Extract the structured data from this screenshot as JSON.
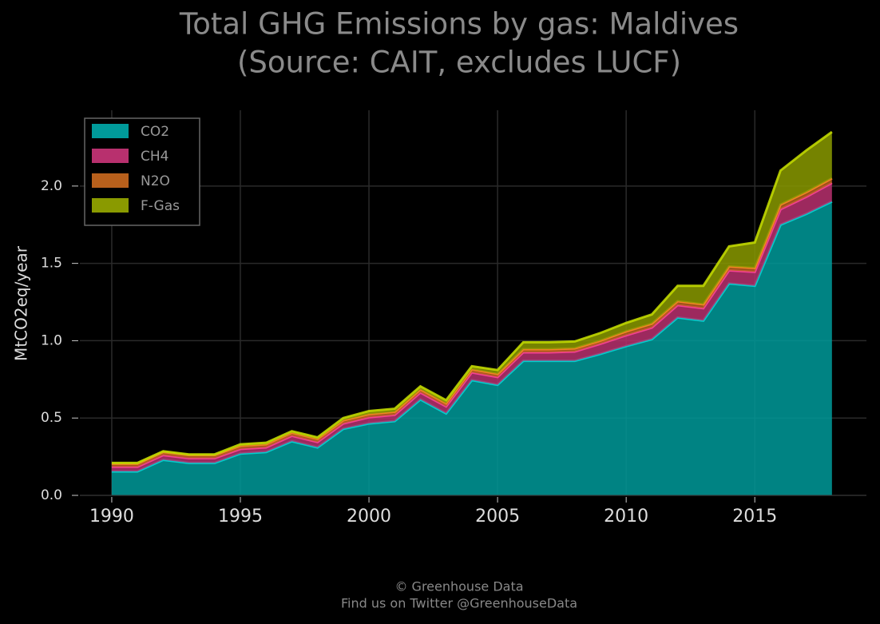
{
  "chart_data": {
    "type": "stacked_area",
    "title": [
      "Total GHG Emissions by gas: Maldives",
      "(Source: CAIT, excludes LUCF)"
    ],
    "ylabel": "MtCO2eq/year",
    "footer": [
      "© Greenhouse Data",
      "Find us on Twitter @GreenhouseData"
    ],
    "x": [
      1990,
      1991,
      1992,
      1993,
      1994,
      1995,
      1996,
      1997,
      1998,
      1999,
      2000,
      2001,
      2002,
      2003,
      2004,
      2005,
      2006,
      2007,
      2008,
      2009,
      2010,
      2011,
      2012,
      2013,
      2014,
      2015,
      2016,
      2017,
      2018
    ],
    "series": [
      {
        "name": "CO2",
        "color": "#009a9a",
        "values": [
          0.155,
          0.155,
          0.23,
          0.21,
          0.21,
          0.27,
          0.28,
          0.35,
          0.31,
          0.43,
          0.465,
          0.48,
          0.62,
          0.53,
          0.745,
          0.715,
          0.87,
          0.87,
          0.87,
          0.915,
          0.965,
          1.01,
          1.15,
          1.13,
          1.37,
          1.355,
          1.75,
          1.82,
          1.9
        ]
      },
      {
        "name": "CH4",
        "color": "#b8306e",
        "values": [
          0.03,
          0.03,
          0.03,
          0.03,
          0.03,
          0.03,
          0.03,
          0.035,
          0.035,
          0.035,
          0.04,
          0.04,
          0.045,
          0.045,
          0.05,
          0.05,
          0.055,
          0.055,
          0.06,
          0.065,
          0.07,
          0.075,
          0.08,
          0.08,
          0.085,
          0.09,
          0.1,
          0.11,
          0.12
        ]
      },
      {
        "name": "N2O",
        "color": "#b8601c",
        "values": [
          0.02,
          0.02,
          0.02,
          0.02,
          0.02,
          0.02,
          0.02,
          0.02,
          0.02,
          0.02,
          0.02,
          0.02,
          0.02,
          0.02,
          0.02,
          0.02,
          0.02,
          0.02,
          0.02,
          0.02,
          0.025,
          0.025,
          0.025,
          0.025,
          0.025,
          0.025,
          0.03,
          0.03,
          0.03
        ]
      },
      {
        "name": "F-Gas",
        "color": "#8a9a00",
        "values": [
          0.005,
          0.005,
          0.005,
          0.005,
          0.005,
          0.01,
          0.01,
          0.01,
          0.01,
          0.015,
          0.02,
          0.02,
          0.02,
          0.02,
          0.02,
          0.025,
          0.045,
          0.045,
          0.045,
          0.05,
          0.055,
          0.06,
          0.1,
          0.12,
          0.13,
          0.165,
          0.22,
          0.27,
          0.3
        ]
      }
    ],
    "xlim": [
      1988.76,
      2019.34
    ],
    "ylim": [
      0,
      2.49
    ],
    "xticks": [
      1990,
      1995,
      2000,
      2005,
      2010,
      2015
    ],
    "yticks": [
      {
        "value": 0,
        "label": "0.0"
      },
      0.5,
      {
        "value": 1,
        "label": "1.0"
      },
      1.5,
      {
        "value": 2,
        "label": "2.0"
      }
    ],
    "grid": true,
    "legend": "upper left"
  }
}
